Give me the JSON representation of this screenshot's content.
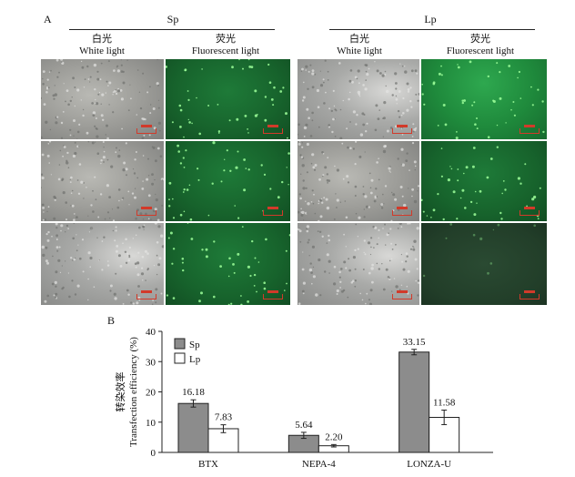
{
  "panel_a": {
    "letter": "A",
    "groups": [
      {
        "title": "Sp",
        "white_cn": "白光",
        "white_en": "White light",
        "fluor_cn": "荧光",
        "fluor_en": "Fluorescent light"
      },
      {
        "title": "Lp",
        "white_cn": "白光",
        "white_en": "White light",
        "fluor_cn": "荧光",
        "fluor_en": "Fluorescent light"
      }
    ]
  },
  "panel_b": {
    "letter": "B"
  },
  "chart_data": {
    "type": "bar",
    "categories": [
      "BTX",
      "NEPA-4",
      "LONZA-U"
    ],
    "series": [
      {
        "name": "Sp",
        "values": [
          16.18,
          5.64,
          33.15
        ],
        "errors": [
          1.2,
          1.0,
          0.9
        ],
        "color": "#8c8c8c"
      },
      {
        "name": "Lp",
        "values": [
          7.83,
          2.2,
          11.58
        ],
        "errors": [
          1.3,
          0.4,
          2.4
        ],
        "color": "#ffffff"
      }
    ],
    "data_labels": [
      "16.18",
      "5.64",
      "33.15",
      "7.83",
      "2.20",
      "11.58"
    ],
    "ylabel_cn": "转染效率",
    "ylabel_en": "Transfection efficiency (%)",
    "ylim": [
      0,
      40
    ],
    "yticks": [
      "0",
      "10",
      "20",
      "30",
      "40"
    ],
    "legend_position": "top-left"
  }
}
